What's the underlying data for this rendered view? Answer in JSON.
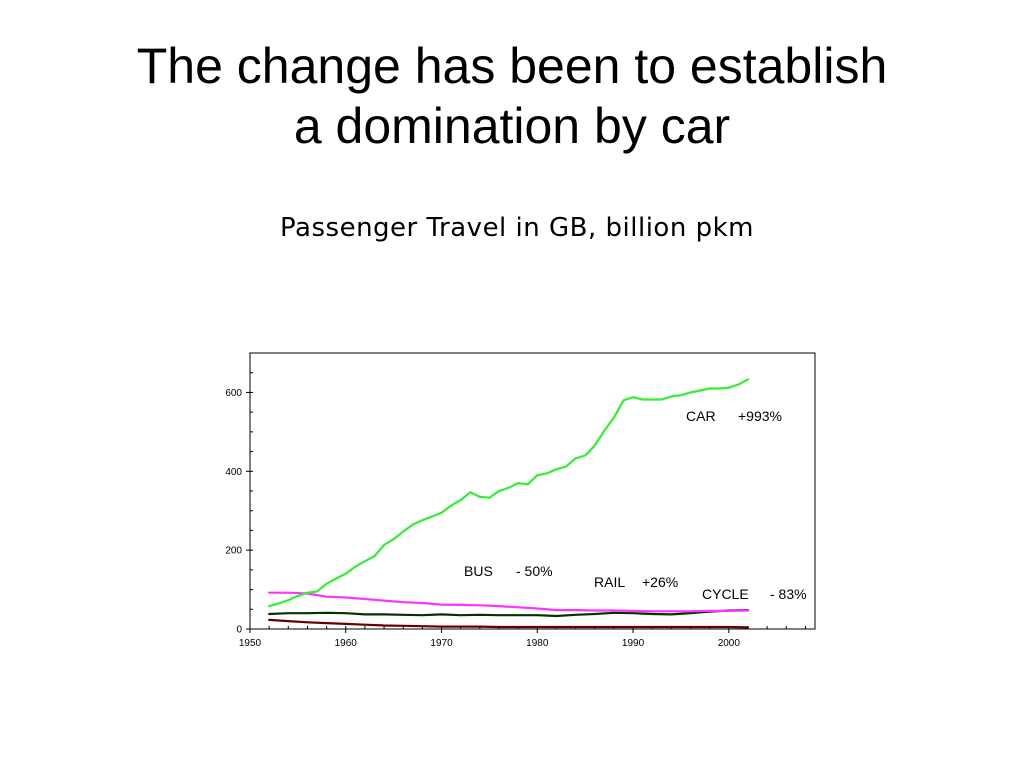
{
  "slide": {
    "title_line1": "The change has been to establish",
    "title_line2": "a domination by car"
  },
  "chart_data": {
    "type": "line",
    "title": "Passenger Travel in GB, billion pkm",
    "xlabel": "",
    "ylabel": "",
    "xlim": [
      1950,
      2009
    ],
    "ylim": [
      0,
      700
    ],
    "xticks": [
      1950,
      1960,
      1970,
      1980,
      1990,
      2000
    ],
    "yticks": [
      0,
      200,
      400,
      600
    ],
    "grid": false,
    "series": [
      {
        "name": "CAR",
        "change": "+993%",
        "color": "#33ee33",
        "x": [
          1952,
          1953,
          1954,
          1955,
          1956,
          1957,
          1958,
          1959,
          1960,
          1961,
          1962,
          1963,
          1964,
          1965,
          1966,
          1967,
          1968,
          1969,
          1970,
          1971,
          1972,
          1973,
          1974,
          1975,
          1976,
          1977,
          1978,
          1979,
          1980,
          1981,
          1982,
          1983,
          1984,
          1985,
          1986,
          1987,
          1988,
          1989,
          1990,
          1991,
          1992,
          1993,
          1994,
          1995,
          1996,
          1997,
          1998,
          1999,
          2000,
          2001,
          2002
        ],
        "y": [
          58,
          65,
          73,
          84,
          92,
          95,
          115,
          128,
          140,
          158,
          172,
          185,
          213,
          228,
          247,
          265,
          276,
          285,
          295,
          313,
          327,
          347,
          335,
          333,
          350,
          358,
          370,
          367,
          390,
          395,
          405,
          412,
          433,
          440,
          465,
          503,
          536,
          580,
          588,
          582,
          582,
          582,
          590,
          593,
          600,
          605,
          610,
          610,
          612,
          620,
          633
        ]
      },
      {
        "name": "BUS",
        "change": "- 50%",
        "color": "#ff33ff",
        "x": [
          1952,
          1954,
          1956,
          1958,
          1960,
          1962,
          1964,
          1966,
          1968,
          1970,
          1972,
          1974,
          1976,
          1978,
          1980,
          1982,
          1984,
          1986,
          1988,
          1990,
          1992,
          1994,
          1996,
          1998,
          2000,
          2002
        ],
        "y": [
          92,
          92,
          90,
          82,
          80,
          76,
          72,
          68,
          66,
          62,
          61,
          60,
          58,
          55,
          52,
          48,
          48,
          47,
          47,
          46,
          45,
          45,
          45,
          46,
          46,
          47
        ]
      },
      {
        "name": "RAIL",
        "change": "+26%",
        "color": "#003300",
        "x": [
          1952,
          1954,
          1956,
          1958,
          1960,
          1962,
          1964,
          1966,
          1968,
          1970,
          1972,
          1974,
          1976,
          1978,
          1980,
          1982,
          1984,
          1986,
          1988,
          1990,
          1992,
          1994,
          1996,
          1998,
          2000,
          2002
        ],
        "y": [
          38,
          40,
          40,
          41,
          40,
          37,
          37,
          36,
          35,
          37,
          35,
          36,
          35,
          35,
          35,
          33,
          36,
          38,
          41,
          40,
          38,
          37,
          40,
          44,
          47,
          48
        ]
      },
      {
        "name": "CYCLE",
        "change": "- 83%",
        "color": "#660000",
        "x": [
          1952,
          1954,
          1956,
          1958,
          1960,
          1962,
          1964,
          1966,
          1968,
          1970,
          1972,
          1974,
          1976,
          1978,
          1980,
          1982,
          1984,
          1986,
          1988,
          1990,
          1992,
          1994,
          1996,
          1998,
          2000,
          2002
        ],
        "y": [
          23,
          20,
          17,
          15,
          13,
          11,
          9,
          8,
          7,
          6,
          6,
          6,
          5,
          5,
          5,
          5,
          5,
          5,
          5,
          5,
          5,
          5,
          5,
          5,
          5,
          4
        ]
      }
    ]
  }
}
